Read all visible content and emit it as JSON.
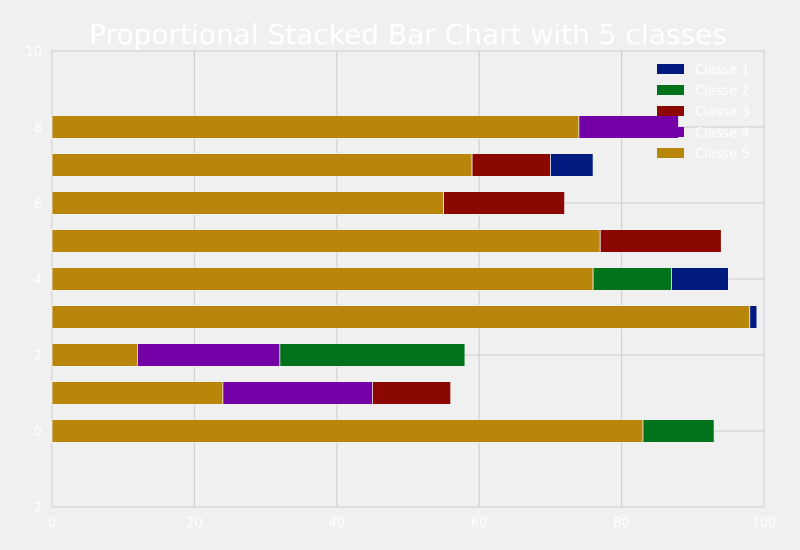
{
  "chart_data": {
    "type": "bar",
    "orientation": "horizontal",
    "stacked": true,
    "title": "Proportional Stacked Bar Chart with 5 classes",
    "xlabel": "",
    "ylabel": "",
    "xlim": [
      0,
      100
    ],
    "ylim": [
      -2,
      10
    ],
    "xticks": [
      "0",
      "20",
      "40",
      "60",
      "80",
      "100"
    ],
    "yticks": [
      "-2",
      "0",
      "2",
      "4",
      "6",
      "8",
      "10"
    ],
    "grid": true,
    "legend_position": "top-right",
    "categories": [
      0,
      1,
      2,
      3,
      4,
      5,
      6,
      7,
      8
    ],
    "stack_order": [
      "Classe 5",
      "Classe 4",
      "Classe 3",
      "Classe 2",
      "Classe 1"
    ],
    "series": [
      {
        "name": "Classe 1",
        "color": "#001a80",
        "values": [
          0,
          0,
          0,
          1,
          8,
          0,
          0,
          6,
          0
        ]
      },
      {
        "name": "Classe 2",
        "color": "#00731a",
        "values": [
          10,
          0,
          26,
          0,
          11,
          0,
          0,
          0,
          0
        ]
      },
      {
        "name": "Classe 3",
        "color": "#8a0800",
        "values": [
          0,
          11,
          0,
          0,
          0,
          17,
          17,
          11,
          0
        ]
      },
      {
        "name": "Classe 4",
        "color": "#7300a6",
        "values": [
          0,
          21,
          20,
          0,
          0,
          0,
          0,
          0,
          14
        ]
      },
      {
        "name": "Classe 5",
        "color": "#b8860b",
        "values": [
          83,
          24,
          12,
          98,
          76,
          77,
          55,
          59,
          74
        ]
      }
    ]
  }
}
